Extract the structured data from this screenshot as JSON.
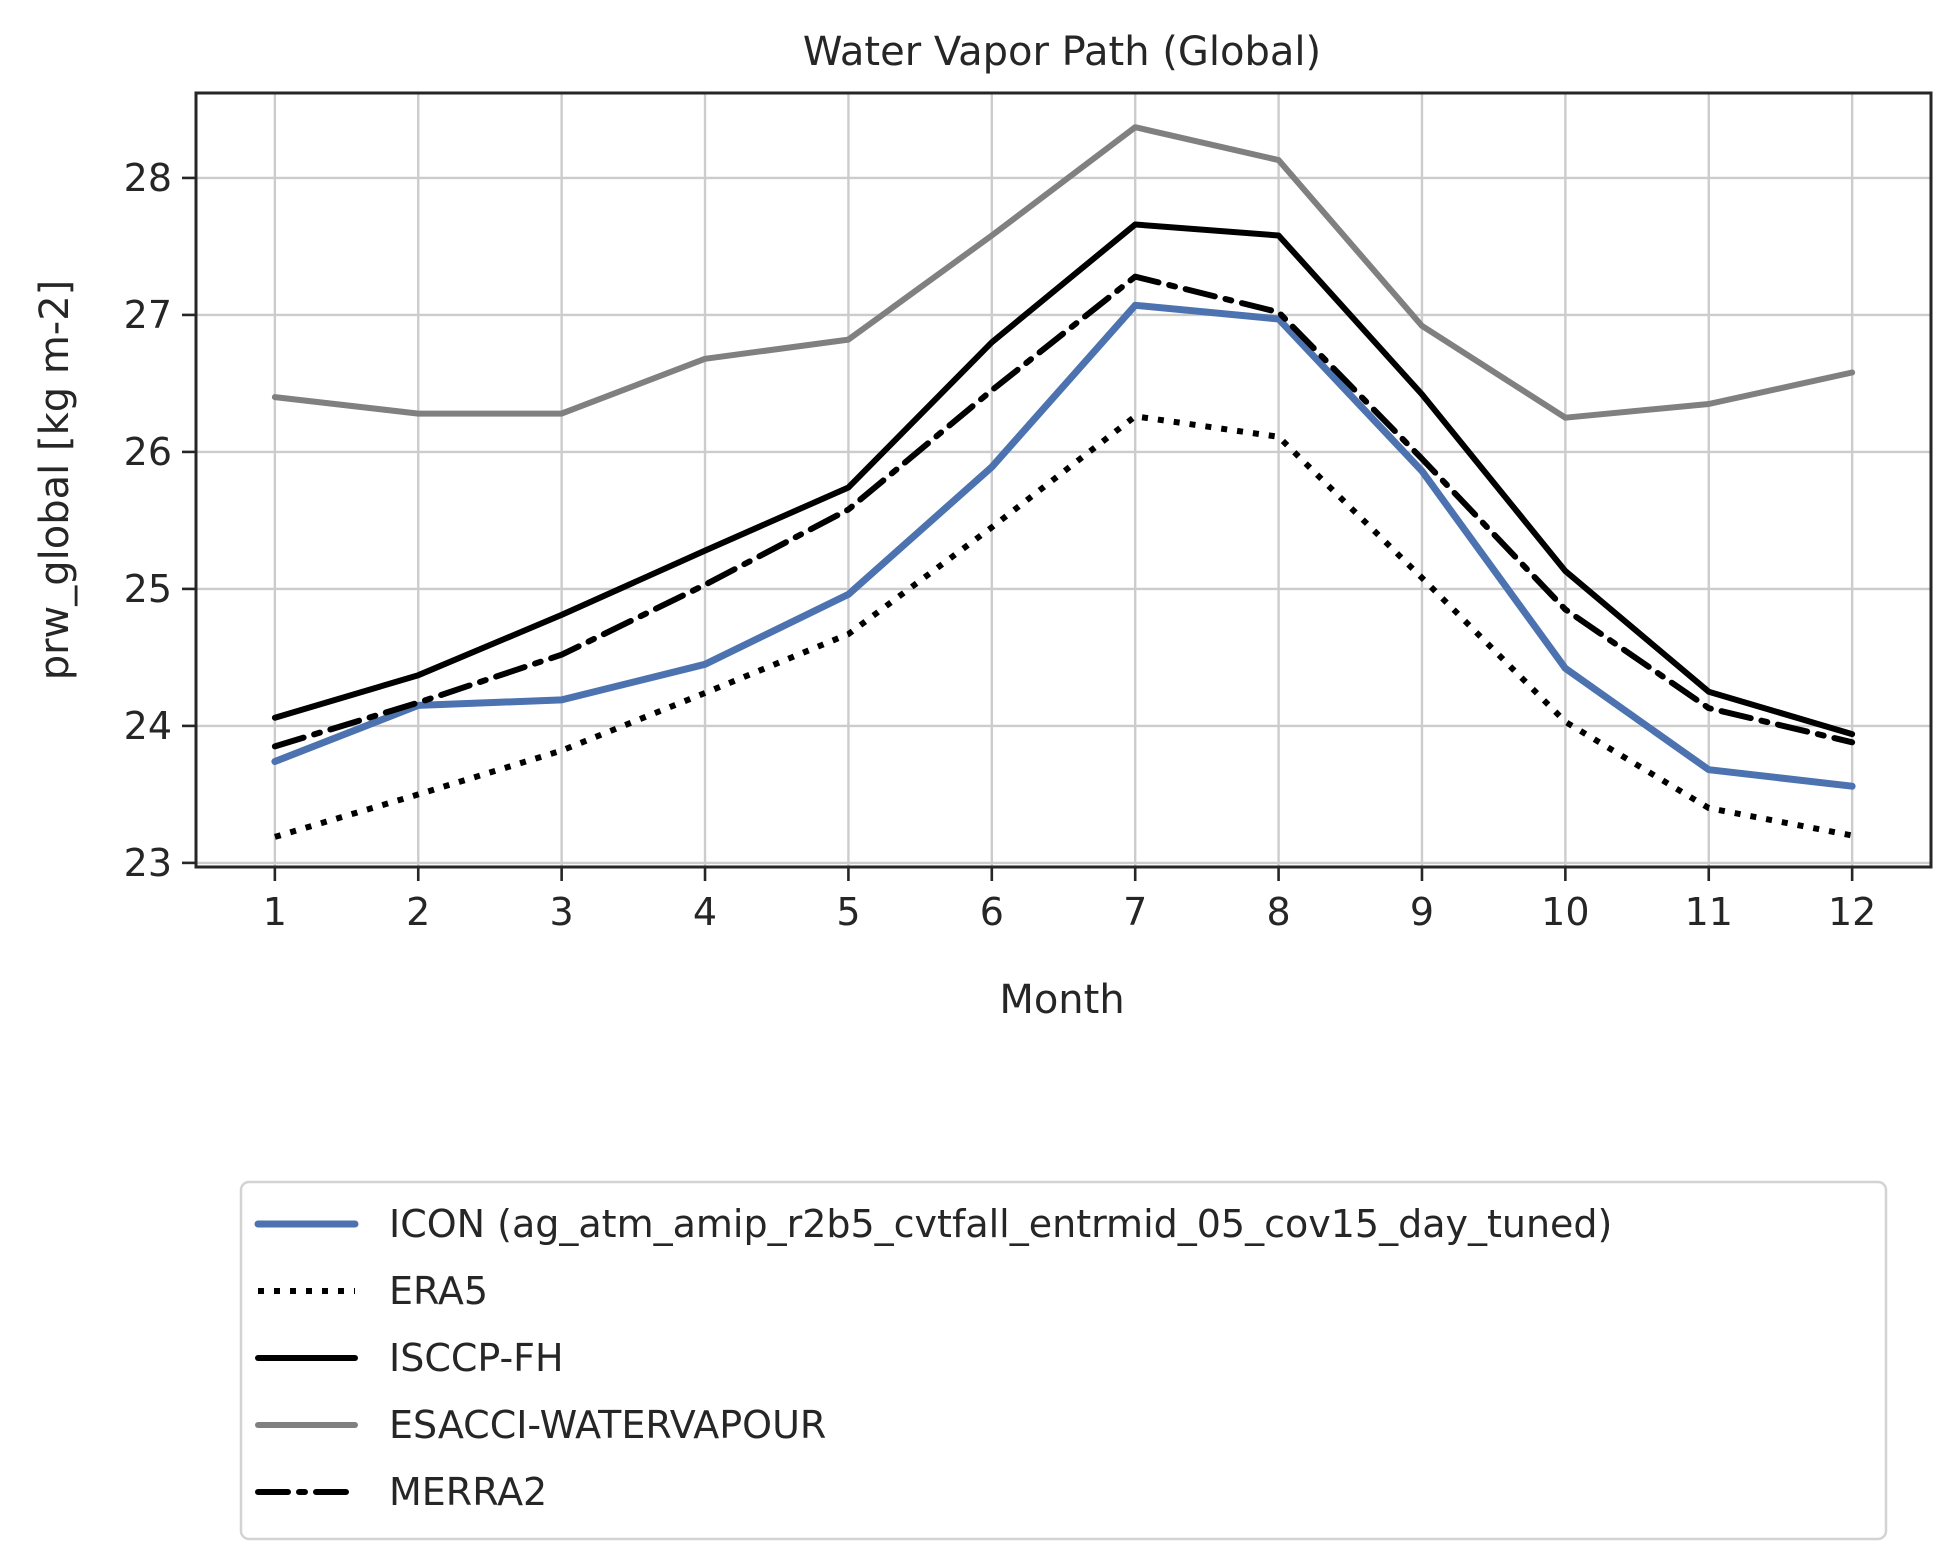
{
  "chart_data": {
    "type": "line",
    "title": "Water Vapor Path (Global)",
    "xlabel": "Month",
    "ylabel": "prw_global [kg m-2]",
    "x": [
      1,
      2,
      3,
      4,
      5,
      6,
      7,
      8,
      9,
      10,
      11,
      12
    ],
    "xticks": [
      "1",
      "2",
      "3",
      "4",
      "5",
      "6",
      "7",
      "8",
      "9",
      "10",
      "11",
      "12"
    ],
    "xlim": [
      0.45,
      12.55
    ],
    "ylim": [
      22.97,
      28.62
    ],
    "yticks": [
      23,
      24,
      25,
      26,
      27,
      28
    ],
    "grid": true,
    "legend_placement": "below",
    "series": [
      {
        "name": "ICON (ag_atm_amip_r2b5_cvtfall_entrmid_05_cov15_day_tuned)",
        "values": [
          23.74,
          24.15,
          24.19,
          24.45,
          24.96,
          25.89,
          27.07,
          26.97,
          25.86,
          24.42,
          23.68,
          23.56
        ],
        "color": "#4c72b0",
        "style": "solid",
        "width": 7
      },
      {
        "name": "ERA5",
        "values": [
          23.19,
          23.5,
          23.82,
          24.24,
          24.67,
          25.45,
          26.26,
          26.11,
          25.08,
          24.03,
          23.4,
          23.2
        ],
        "color": "#000000",
        "style": "dotted",
        "width": 6
      },
      {
        "name": "ISCCP-FH",
        "values": [
          24.06,
          24.37,
          24.81,
          25.28,
          25.74,
          26.8,
          27.66,
          27.58,
          26.42,
          25.13,
          24.25,
          23.94
        ],
        "color": "#000000",
        "style": "solid",
        "width": 6
      },
      {
        "name": "ESACCI-WATERVAPOUR",
        "values": [
          26.4,
          26.28,
          26.28,
          26.68,
          26.82,
          27.58,
          28.37,
          28.13,
          26.92,
          26.25,
          26.35,
          26.58
        ],
        "color": "#808080",
        "style": "solid",
        "width": 6
      },
      {
        "name": "MERRA2",
        "values": [
          23.85,
          24.17,
          24.52,
          25.03,
          25.58,
          26.45,
          27.28,
          27.02,
          25.95,
          24.85,
          24.13,
          23.88
        ],
        "color": "#000000",
        "style": "dashdot",
        "width": 6
      }
    ]
  }
}
